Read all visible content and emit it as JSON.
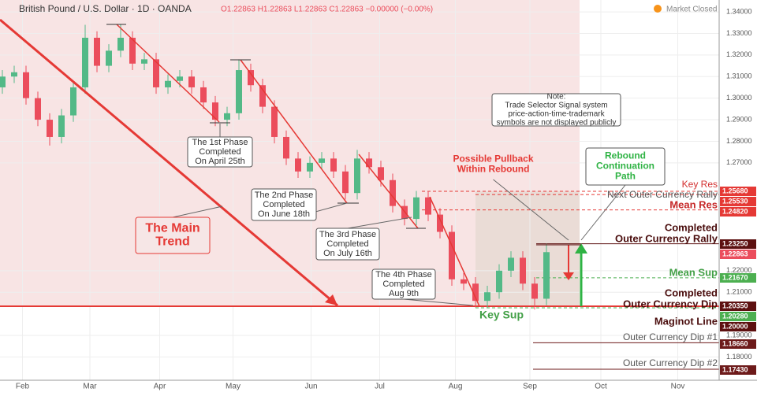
{
  "chart_data": {
    "type": "candlestick",
    "title": "British Pound / U.S. Dollar · 1D · OANDA",
    "ohlc_header": "O1.22863 H1.22863 L1.22863 C1.22863 −0.00000 (−0.00%)",
    "status": "Market Closed",
    "xlim": [
      -0.2,
      60.6
    ],
    "xticks": [
      {
        "value": 1.7,
        "label": "Feb"
      },
      {
        "value": 7.4,
        "label": "Mar"
      },
      {
        "value": 13.3,
        "label": "Apr"
      },
      {
        "value": 19.5,
        "label": "May"
      },
      {
        "value": 26.1,
        "label": "Jun"
      },
      {
        "value": 31.9,
        "label": "Jul"
      },
      {
        "value": 38.3,
        "label": "Aug"
      },
      {
        "value": 44.6,
        "label": "Sep"
      },
      {
        "value": 50.6,
        "label": "Oct"
      },
      {
        "value": 57.1,
        "label": "Nov"
      }
    ],
    "ylim": [
      1.1692,
      1.3455
    ],
    "yticks": [
      {
        "value": 1.34,
        "label": "1.34000"
      },
      {
        "value": 1.33,
        "label": "1.33000"
      },
      {
        "value": 1.32,
        "label": "1.32000"
      },
      {
        "value": 1.31,
        "label": "1.31000"
      },
      {
        "value": 1.3,
        "label": "1.30000"
      },
      {
        "value": 1.29,
        "label": "1.29000"
      },
      {
        "value": 1.28,
        "label": "1.28000"
      },
      {
        "value": 1.27,
        "label": "1.27000"
      },
      {
        "value": 1.22,
        "label": "1.22000"
      },
      {
        "value": 1.21,
        "label": "1.21000"
      },
      {
        "value": 1.19,
        "label": "1.19000"
      },
      {
        "value": 1.18,
        "label": "1.18000"
      }
    ],
    "up_color": "#53b987",
    "down_color": "#eb4d5c",
    "open": [
      1.305,
      1.31,
      1.312,
      1.3,
      1.29,
      1.282,
      1.292,
      1.305,
      1.328,
      1.315,
      1.322,
      1.328,
      1.316,
      1.318,
      1.305,
      1.308,
      1.31,
      1.305,
      1.298,
      1.29,
      1.293,
      1.313,
      1.306,
      1.296,
      1.282,
      1.272,
      1.266,
      1.27,
      1.272,
      1.266,
      1.256,
      1.272,
      1.268,
      1.262,
      1.25,
      1.244,
      1.254,
      1.246,
      1.238,
      1.216,
      1.214,
      1.206,
      1.21,
      1.22,
      1.226,
      1.214,
      1.207
    ],
    "high": [
      1.313,
      1.315,
      1.315,
      1.303,
      1.293,
      1.295,
      1.308,
      1.334,
      1.331,
      1.325,
      1.334,
      1.331,
      1.321,
      1.321,
      1.311,
      1.313,
      1.313,
      1.308,
      1.301,
      1.296,
      1.318,
      1.316,
      1.309,
      1.299,
      1.285,
      1.275,
      1.273,
      1.275,
      1.275,
      1.269,
      1.276,
      1.275,
      1.271,
      1.265,
      1.253,
      1.257,
      1.257,
      1.249,
      1.241,
      1.219,
      1.217,
      1.213,
      1.223,
      1.229,
      1.229,
      1.217,
      1.2325
    ],
    "low": [
      1.302,
      1.307,
      1.297,
      1.287,
      1.278,
      1.279,
      1.289,
      1.302,
      1.312,
      1.312,
      1.319,
      1.313,
      1.313,
      1.302,
      1.302,
      1.305,
      1.302,
      1.295,
      1.287,
      1.287,
      1.29,
      1.303,
      1.293,
      1.279,
      1.269,
      1.263,
      1.263,
      1.267,
      1.263,
      1.253,
      1.253,
      1.265,
      1.259,
      1.247,
      1.241,
      1.241,
      1.243,
      1.235,
      1.213,
      1.211,
      1.203,
      1.203,
      1.207,
      1.217,
      1.211,
      1.202,
      1.204
    ],
    "close": [
      1.31,
      1.312,
      1.3,
      1.29,
      1.282,
      1.292,
      1.305,
      1.328,
      1.315,
      1.322,
      1.328,
      1.316,
      1.318,
      1.305,
      1.308,
      1.31,
      1.305,
      1.298,
      1.29,
      1.293,
      1.313,
      1.306,
      1.296,
      1.282,
      1.272,
      1.266,
      1.27,
      1.272,
      1.266,
      1.256,
      1.272,
      1.268,
      1.262,
      1.25,
      1.244,
      1.254,
      1.246,
      1.238,
      1.216,
      1.214,
      1.206,
      1.21,
      1.22,
      1.226,
      1.214,
      1.207,
      1.2286
    ],
    "levels": [
      {
        "name": [
          "Key Res"
        ],
        "value": 1.2568,
        "label": "1.25680",
        "color": "#e53935",
        "text_color": "#d32f2f",
        "bold": false
      },
      {
        "name": [
          "Next Outer Currency Rally"
        ],
        "value": 1.2553,
        "label": "1.25530",
        "color": "#e53935",
        "text_color": "#555555",
        "bold": false
      },
      {
        "name": [
          "Mean Res"
        ],
        "value": 1.2482,
        "label": "1.24820",
        "color": "#e53935",
        "text_color": "#c62828",
        "bold": true
      },
      {
        "name": [
          "Completed",
          "Outer Currency Rally"
        ],
        "value": 1.2325,
        "label": "1.23250",
        "color": "#5d1010",
        "text_color": "#4a0d0d",
        "bold": true
      },
      {
        "name": [],
        "value": 1.22863,
        "label": "1.22863",
        "color": "#eb4d5c",
        "text_color": "#eb4d5c",
        "bold": false
      },
      {
        "name": [
          "Mean Sup"
        ],
        "value": 1.2167,
        "label": "1.21670",
        "color": "#4caf50",
        "text_color": "#43a047",
        "bold": true
      },
      {
        "name": [
          "Completed",
          "Outer Currency Dip"
        ],
        "value": 1.2035,
        "label": "1.20350",
        "color": "#5d1010",
        "text_color": "#4a0d0d",
        "bold": true
      },
      {
        "name": [],
        "value": 1.2028,
        "label": "1.20280",
        "color": "#4caf50",
        "text_color": "#43a047",
        "bold": false
      },
      {
        "name": [
          "Maginot Line"
        ],
        "value": 1.2,
        "label": "1.20000",
        "color": "#5d1010",
        "text_color": "#4a0d0d",
        "bold": true
      },
      {
        "name": [
          "Outer Currency Dip #1"
        ],
        "value": 1.1866,
        "label": "1.18660",
        "color": "#6d1a1a",
        "text_color": "#555555",
        "bold": false
      },
      {
        "name": [
          "Outer Currency Dip #2"
        ],
        "value": 1.1743,
        "label": "1.17430",
        "color": "#6d1a1a",
        "text_color": "#555555",
        "bold": false
      }
    ],
    "annotations": [
      {
        "lines": [
          "The 1st Phase",
          "Completed",
          "On April 25th"
        ]
      },
      {
        "lines": [
          "The 2nd Phase",
          "Completed",
          "On June 18th"
        ]
      },
      {
        "lines": [
          "The 3rd Phase",
          "Completed",
          "On July 16th"
        ]
      },
      {
        "lines": [
          "The 4th Phase",
          "Completed",
          "Aug 9th"
        ]
      },
      {
        "lines": [
          "The Main",
          "Trend"
        ]
      },
      {
        "lines": [
          "Note:",
          "Trade Selector Signal system",
          "price-action-time-trademark",
          "symbols are not displayed publicly"
        ]
      },
      {
        "lines": [
          "Possible Pullback",
          "Within Rebound"
        ]
      },
      {
        "lines": [
          "Rebound",
          "Continuation",
          "Path"
        ]
      },
      {
        "lines": [
          "Key Sup"
        ]
      }
    ]
  }
}
